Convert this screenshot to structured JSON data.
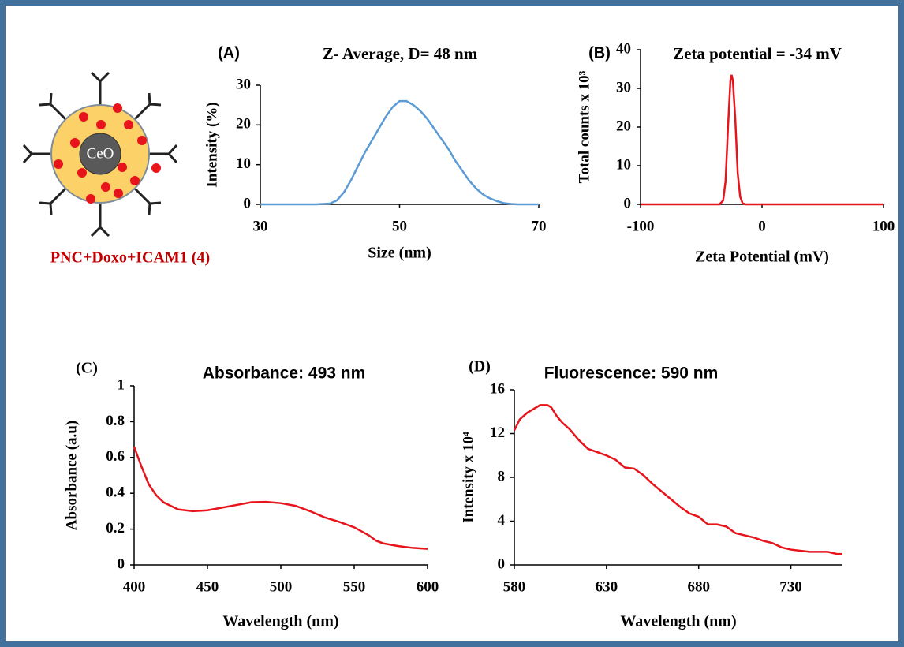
{
  "diagram": {
    "core_label": "CeO",
    "caption": "PNC+Doxo+ICAM1 (4)"
  },
  "chart_data": [
    {
      "type": "line",
      "panel_label": "(A)",
      "title": "Z- Average, D= 48  nm",
      "x_label": "Size (nm)",
      "y_label": "Intensity (%)",
      "color": "#5b9bd5",
      "xlim": [
        30,
        70
      ],
      "xticks": [
        30,
        50,
        70
      ],
      "ylim": [
        0,
        30
      ],
      "yticks": [
        0,
        10,
        20,
        30
      ],
      "x": [
        30,
        38,
        40,
        41,
        42,
        43,
        44,
        45,
        46,
        47,
        48,
        49,
        50,
        51,
        52,
        53,
        54,
        55,
        56,
        57,
        58,
        59,
        60,
        61,
        62,
        63,
        64,
        65,
        66,
        67,
        70
      ],
      "values": [
        0,
        0,
        0.2,
        1,
        3,
        6,
        9.5,
        13,
        16,
        19,
        22,
        24.5,
        26,
        26,
        25,
        23.5,
        21.5,
        19,
        16.5,
        14,
        11,
        8.5,
        6,
        4,
        2.5,
        1.5,
        0.8,
        0.3,
        0.1,
        0,
        0
      ]
    },
    {
      "type": "line",
      "panel_label": "(B)",
      "title": "Zeta potential = -34 mV",
      "x_label": "Zeta Potential (mV)",
      "y_label": "Total counts x 10³",
      "color": "#e8141c",
      "xlim": [
        -100,
        100
      ],
      "xticks": [
        -100,
        0,
        100
      ],
      "ylim": [
        0,
        40
      ],
      "yticks": [
        0,
        10,
        20,
        30,
        40
      ],
      "x": [
        -100,
        -35,
        -32,
        -30,
        -28,
        -26,
        -25,
        -24,
        -22,
        -20,
        -18,
        -16,
        -14,
        100
      ],
      "values": [
        0,
        0,
        1,
        6,
        20,
        32,
        33.5,
        32,
        22,
        8,
        2,
        0.3,
        0,
        0
      ]
    },
    {
      "type": "line",
      "panel_label": "(C)",
      "title": "Absorbance: 493 nm",
      "x_label": "Wavelength (nm)",
      "y_label": "Absorbance (a.u)",
      "color": "#e8141c",
      "xlim": [
        400,
        600
      ],
      "xticks": [
        400,
        450,
        500,
        550,
        600
      ],
      "ylim": [
        0,
        1
      ],
      "yticks": [
        0,
        0.2,
        0.4,
        0.6,
        0.8,
        1
      ],
      "x": [
        400,
        405,
        410,
        415,
        420,
        425,
        430,
        440,
        450,
        460,
        470,
        480,
        490,
        500,
        510,
        520,
        530,
        540,
        550,
        560,
        565,
        570,
        580,
        590,
        600
      ],
      "values": [
        0.66,
        0.55,
        0.45,
        0.39,
        0.35,
        0.33,
        0.31,
        0.3,
        0.305,
        0.32,
        0.335,
        0.35,
        0.352,
        0.345,
        0.33,
        0.3,
        0.265,
        0.24,
        0.21,
        0.165,
        0.135,
        0.12,
        0.105,
        0.095,
        0.09
      ]
    },
    {
      "type": "line",
      "panel_label": "(D)",
      "title": "Fluorescence: 590 nm",
      "x_label": "Wavelength (nm)",
      "y_label": "Intensity x 10⁴",
      "color": "#e8141c",
      "xlim": [
        580,
        758
      ],
      "xticks": [
        580,
        630,
        680,
        730
      ],
      "ylim": [
        0,
        16
      ],
      "yticks": [
        0,
        4,
        8,
        12,
        16
      ],
      "x": [
        580,
        583,
        587,
        590,
        594,
        598,
        600,
        603,
        606,
        610,
        615,
        620,
        625,
        630,
        635,
        640,
        645,
        650,
        655,
        660,
        665,
        670,
        675,
        680,
        685,
        690,
        695,
        700,
        705,
        710,
        715,
        720,
        725,
        730,
        735,
        740,
        745,
        750,
        755,
        758
      ],
      "values": [
        12.3,
        13.3,
        13.9,
        14.2,
        14.6,
        14.6,
        14.4,
        13.6,
        13.0,
        12.4,
        11.4,
        10.6,
        10.3,
        10.0,
        9.6,
        8.9,
        8.8,
        8.2,
        7.4,
        6.7,
        6.0,
        5.3,
        4.7,
        4.4,
        3.7,
        3.7,
        3.5,
        2.9,
        2.7,
        2.5,
        2.2,
        2.0,
        1.6,
        1.4,
        1.3,
        1.2,
        1.2,
        1.2,
        1.0,
        1.0
      ]
    }
  ]
}
